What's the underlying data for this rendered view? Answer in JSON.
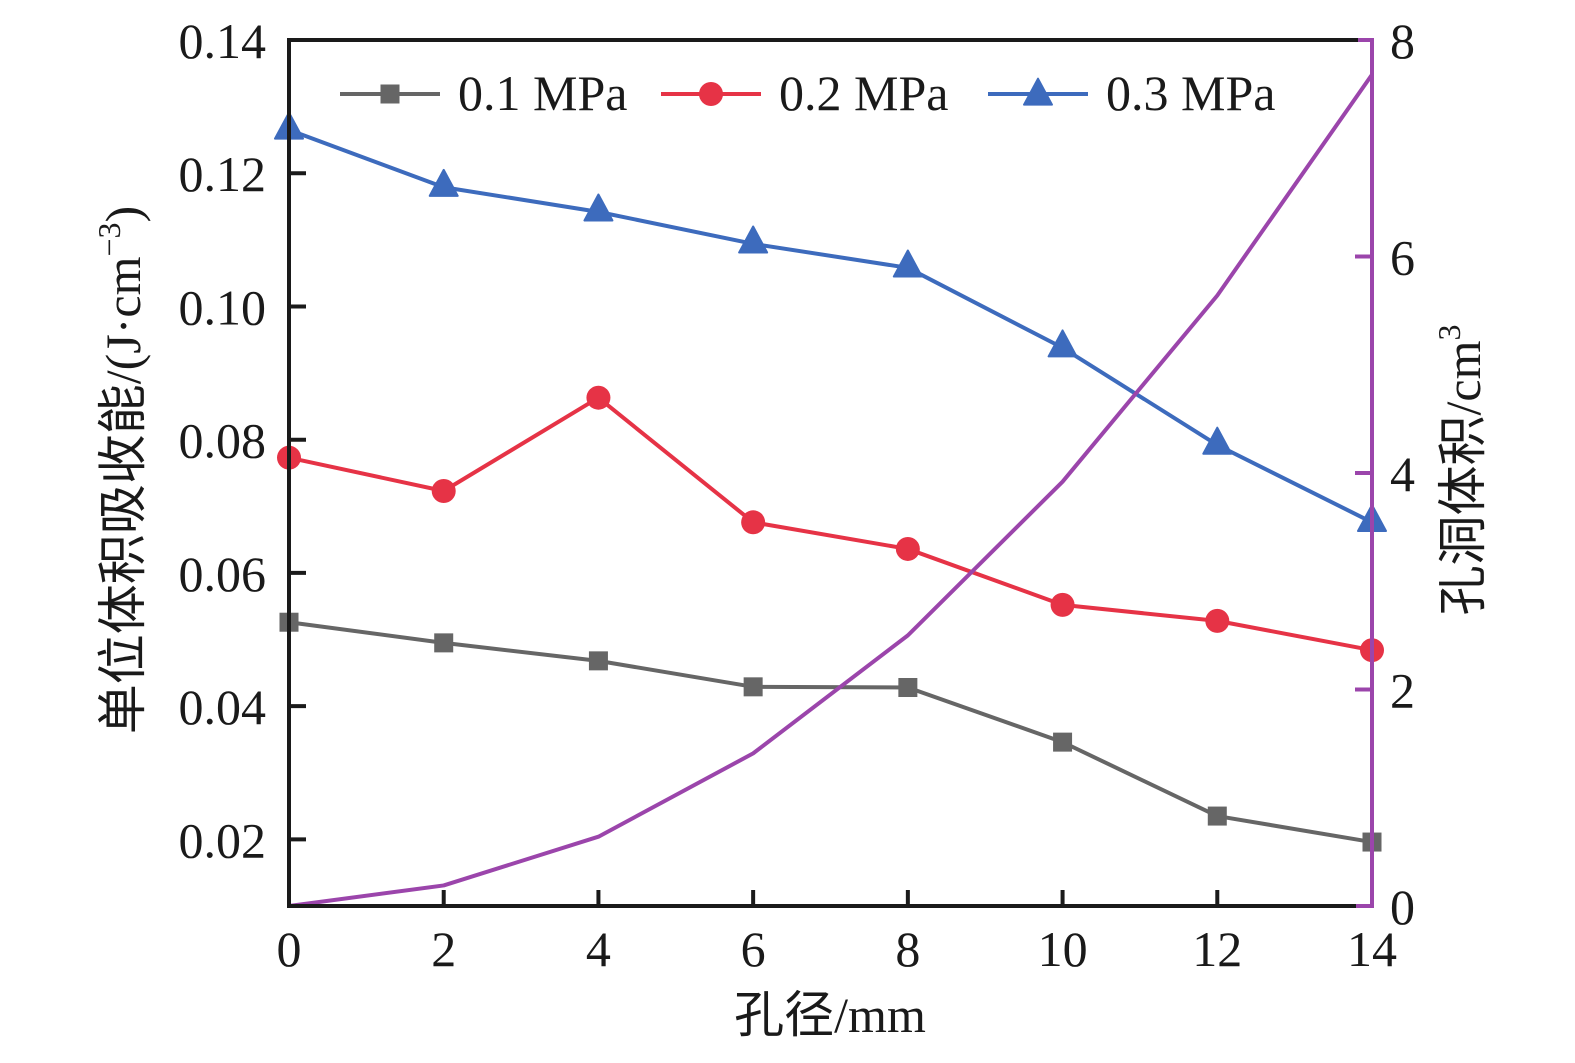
{
  "chart_data": {
    "type": "line",
    "title": "",
    "xlabel": "孔径/mm",
    "ylabel": "单位体积吸收能/(J·cm⁻³)",
    "ylabel_parts": {
      "main": "单位体积吸收能/(J·cm",
      "sup": "−3",
      "tail": ")"
    },
    "y2label": "孔洞体积/cm³",
    "y2label_parts": {
      "main": "孔洞体积/cm",
      "sup": "3"
    },
    "x": [
      0,
      2,
      4,
      6,
      8,
      10,
      12,
      14
    ],
    "xlim": [
      0,
      14
    ],
    "xticks": [
      0,
      2,
      4,
      6,
      8,
      10,
      12,
      14
    ],
    "xtick_labels": [
      "0",
      "2",
      "4",
      "6",
      "8",
      "10",
      "12",
      "14"
    ],
    "ylim": [
      0.01,
      0.14
    ],
    "yticks": [
      0.02,
      0.04,
      0.06,
      0.08,
      0.1,
      0.12,
      0.14
    ],
    "ytick_labels": [
      "0.02",
      "0.04",
      "0.06",
      "0.08",
      "0.10",
      "0.12",
      "0.14"
    ],
    "y2lim": [
      0,
      8
    ],
    "y2ticks": [
      0,
      2,
      4,
      6,
      8
    ],
    "y2tick_labels": [
      "0",
      "2",
      "4",
      "6",
      "8"
    ],
    "grid": false,
    "legend_position": "top",
    "series": [
      {
        "name": "0.1 MPa",
        "axis": "left",
        "marker": "square",
        "color": "#666666",
        "values": [
          0.0526,
          0.0495,
          0.0468,
          0.0429,
          0.0428,
          0.0346,
          0.0235,
          0.0196
        ]
      },
      {
        "name": "0.2 MPa",
        "axis": "left",
        "marker": "circle",
        "color": "#e63346",
        "values": [
          0.0773,
          0.0723,
          0.0863,
          0.0676,
          0.0636,
          0.0552,
          0.0528,
          0.0484
        ]
      },
      {
        "name": "0.3 MPa",
        "axis": "left",
        "marker": "triangle",
        "color": "#3d6bbd",
        "values": [
          0.1265,
          0.1179,
          0.1142,
          0.1094,
          0.1058,
          0.0938,
          0.0792,
          0.0676
        ]
      },
      {
        "name": "孔洞体积",
        "axis": "right",
        "marker": "none",
        "color": "#9b45ab",
        "in_legend": false,
        "values": [
          0,
          0.19,
          0.64,
          1.41,
          2.5,
          3.92,
          5.64,
          7.68
        ]
      }
    ],
    "axis_colors": {
      "left": "#1a1a1a",
      "right": "#9b45ab",
      "bottom": "#1a1a1a",
      "top": "#1a1a1a"
    }
  }
}
